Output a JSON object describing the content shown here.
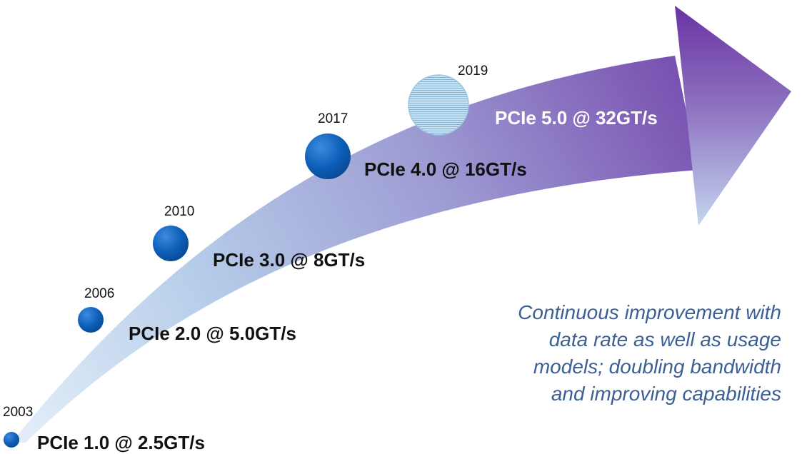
{
  "milestones": [
    {
      "year": "2003",
      "label": "PCIe 1.0 @ 2.5GT/s"
    },
    {
      "year": "2006",
      "label": "PCIe 2.0 @ 5.0GT/s"
    },
    {
      "year": "2010",
      "label": "PCIe 3.0 @ 8GT/s"
    },
    {
      "year": "2017",
      "label": "PCIe 4.0 @ 16GT/s"
    },
    {
      "year": "2019",
      "label": "PCIe 5.0 @ 32GT/s",
      "style": "hatched"
    }
  ],
  "caption": [
    "Continuous improvement with",
    "data rate as well as usage",
    "models; doubling bandwidth",
    "and improving capabilities"
  ],
  "colors": {
    "arrow_tip": "#6e3aa6",
    "arrow_mid": "#9a90cc",
    "arrow_base": "#cfe0f3",
    "node": "#0d5fb8",
    "node_hatched": "#a8cfe6",
    "caption": "#3c5f95"
  }
}
